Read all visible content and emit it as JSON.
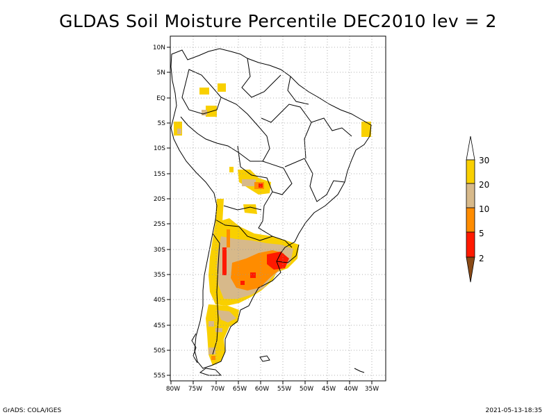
{
  "title": "GLDAS Soil Moisture Percentile DEC2010 lev = 2",
  "footer": {
    "left": "GrADS: COLA/IGES",
    "right": "2021-05-13-18:35"
  },
  "axes": {
    "lon_labels": [
      "80W",
      "75W",
      "70W",
      "65W",
      "60W",
      "55W",
      "50W",
      "45W",
      "40W",
      "35W"
    ],
    "lat_labels": [
      "10N",
      "5N",
      "EQ",
      "5S",
      "10S",
      "15S",
      "20S",
      "25S",
      "30S",
      "35S",
      "40S",
      "45S",
      "50S",
      "55S"
    ]
  },
  "legend": {
    "labels": [
      "30",
      "20",
      "10",
      "5",
      "2"
    ],
    "colors": {
      "above_30": "#ffffff",
      "c20_30": "#f9d000",
      "c10_20": "#d7b98a",
      "c5_10": "#ff8c00",
      "c2_5": "#ff1a00",
      "below_2": "#8a4a16"
    }
  }
}
